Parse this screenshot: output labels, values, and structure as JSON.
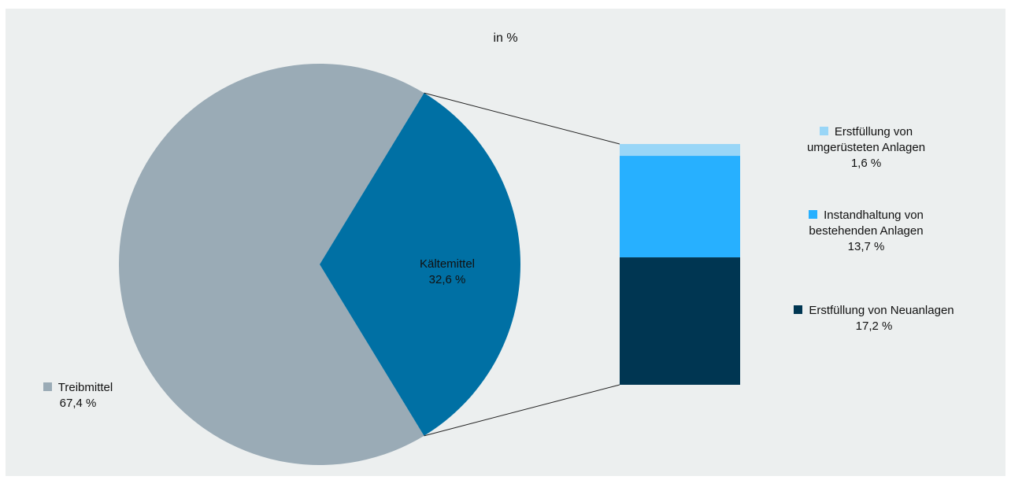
{
  "chart_data": {
    "type": "bar-of-pie",
    "subtitle": "in %",
    "pie": [
      {
        "name": "Treibmittel",
        "value": 67.4,
        "value_text": "67,4 %",
        "color": "#9aabb6"
      },
      {
        "name": "Kältemittel",
        "value": 32.6,
        "value_text": "32,6 %",
        "color": "#0070a4"
      }
    ],
    "breakdown_of": "Kältemittel",
    "stack": [
      {
        "name_lines": [
          "Erstfüllung von",
          "umgerüsteten Anlagen"
        ],
        "value": 1.6,
        "value_text": "1,6 %",
        "color": "#99d6f7"
      },
      {
        "name_lines": [
          "Instandhaltung von",
          "bestehenden Anlagen"
        ],
        "value": 13.7,
        "value_text": "13,7 %",
        "color": "#27b0ff"
      },
      {
        "name_lines": [
          "Erstfüllung von Neuanlagen"
        ],
        "value": 17.2,
        "value_text": "17,2 %",
        "color": "#003652"
      }
    ],
    "connector_color": "#222222",
    "background": "#ecefef"
  }
}
